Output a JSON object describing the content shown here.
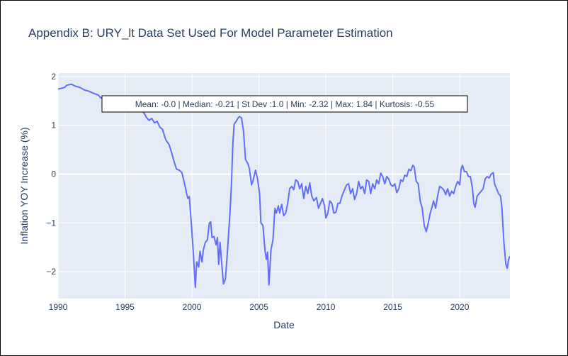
{
  "chart_data": {
    "type": "line",
    "title": "Appendix B: URY_lt Data Set Used For Model Parameter Estimation",
    "xlabel": "Date",
    "ylabel": "Inflation YOY Increase (%)",
    "xlim": [
      1990.0,
      2023.75
    ],
    "ylim": [
      -2.55,
      2.07
    ],
    "x_ticks": [
      1990,
      1995,
      2000,
      2005,
      2010,
      2015,
      2020
    ],
    "x_tick_labels": [
      "1990",
      "1995",
      "2000",
      "2005",
      "2010",
      "2015",
      "2020"
    ],
    "y_ticks": [
      2,
      1,
      0,
      -1,
      -2
    ],
    "y_tick_labels": [
      "2",
      "1",
      "0",
      "−1",
      "−2"
    ],
    "grid": true,
    "background": "#e5ecf6",
    "annotation": "Mean: -0.0 | Median: -0.21 | St Dev :1.0 | Min: -2.32 | Max: 1.84 | Kurtosis: -0.55",
    "series": [
      {
        "color": "#636efa",
        "points": [
          [
            1990.0,
            1.74
          ],
          [
            1990.3,
            1.76
          ],
          [
            1990.5,
            1.78
          ],
          [
            1990.65,
            1.82
          ],
          [
            1991.0,
            1.84
          ],
          [
            1991.3,
            1.8
          ],
          [
            1991.6,
            1.78
          ],
          [
            1992.0,
            1.72
          ],
          [
            1992.3,
            1.7
          ],
          [
            1992.6,
            1.66
          ],
          [
            1993.0,
            1.62
          ],
          [
            1993.2,
            1.56
          ],
          [
            1993.4,
            1.55
          ],
          [
            1994.0,
            1.5
          ],
          [
            1994.6,
            1.45
          ],
          [
            1995.2,
            1.4
          ],
          [
            1995.8,
            1.34
          ],
          [
            1996.2,
            1.3
          ],
          [
            1996.4,
            1.26
          ],
          [
            1996.6,
            1.16
          ],
          [
            1996.8,
            1.1
          ],
          [
            1997.0,
            1.14
          ],
          [
            1997.2,
            1.05
          ],
          [
            1997.4,
            1.08
          ],
          [
            1997.6,
            0.96
          ],
          [
            1997.8,
            0.92
          ],
          [
            1997.95,
            0.78
          ],
          [
            1998.05,
            0.7
          ],
          [
            1998.3,
            0.6
          ],
          [
            1998.5,
            0.42
          ],
          [
            1998.7,
            0.22
          ],
          [
            1998.85,
            0.1
          ],
          [
            1999.05,
            0.08
          ],
          [
            1999.25,
            0.03
          ],
          [
            1999.45,
            -0.2
          ],
          [
            1999.6,
            -0.4
          ],
          [
            1999.7,
            -0.5
          ],
          [
            1999.8,
            -0.46
          ],
          [
            1999.95,
            -1.0
          ],
          [
            2000.1,
            -1.6
          ],
          [
            2000.25,
            -2.32
          ],
          [
            2000.35,
            -1.8
          ],
          [
            2000.5,
            -1.9
          ],
          [
            2000.6,
            -1.58
          ],
          [
            2000.75,
            -1.8
          ],
          [
            2000.85,
            -1.55
          ],
          [
            2001.0,
            -1.4
          ],
          [
            2001.15,
            -1.35
          ],
          [
            2001.3,
            -1.0
          ],
          [
            2001.4,
            -0.98
          ],
          [
            2001.5,
            -1.3
          ],
          [
            2001.65,
            -1.28
          ],
          [
            2001.8,
            -1.45
          ],
          [
            2001.9,
            -1.3
          ],
          [
            2002.0,
            -1.85
          ],
          [
            2002.1,
            -1.4
          ],
          [
            2002.2,
            -1.75
          ],
          [
            2002.35,
            -2.25
          ],
          [
            2002.5,
            -2.15
          ],
          [
            2002.65,
            -1.6
          ],
          [
            2002.85,
            -0.75
          ],
          [
            2002.95,
            -0.2
          ],
          [
            2003.05,
            0.6
          ],
          [
            2003.15,
            1.02
          ],
          [
            2003.3,
            1.08
          ],
          [
            2003.45,
            1.15
          ],
          [
            2003.55,
            1.18
          ],
          [
            2003.7,
            1.15
          ],
          [
            2003.85,
            0.88
          ],
          [
            2004.0,
            0.3
          ],
          [
            2004.2,
            0.2
          ],
          [
            2004.3,
            0.1
          ],
          [
            2004.45,
            -0.22
          ],
          [
            2004.55,
            -0.15
          ],
          [
            2004.75,
            0.08
          ],
          [
            2004.9,
            -0.1
          ],
          [
            2005.05,
            -0.4
          ],
          [
            2005.15,
            -1.0
          ],
          [
            2005.3,
            -1.05
          ],
          [
            2005.45,
            -1.55
          ],
          [
            2005.55,
            -1.75
          ],
          [
            2005.65,
            -1.6
          ],
          [
            2005.75,
            -2.27
          ],
          [
            2005.9,
            -1.55
          ],
          [
            2006.05,
            -1.35
          ],
          [
            2006.2,
            -0.7
          ],
          [
            2006.3,
            -0.8
          ],
          [
            2006.45,
            -0.65
          ],
          [
            2006.55,
            -0.8
          ],
          [
            2006.7,
            -0.62
          ],
          [
            2006.85,
            -0.85
          ],
          [
            2007.0,
            -0.8
          ],
          [
            2007.15,
            -0.6
          ],
          [
            2007.3,
            -0.3
          ],
          [
            2007.45,
            -0.25
          ],
          [
            2007.6,
            -0.32
          ],
          [
            2007.75,
            -0.12
          ],
          [
            2007.9,
            -0.15
          ],
          [
            2008.05,
            -0.3
          ],
          [
            2008.2,
            -0.2
          ],
          [
            2008.35,
            -0.5
          ],
          [
            2008.5,
            -0.25
          ],
          [
            2008.65,
            -0.4
          ],
          [
            2008.8,
            -0.18
          ],
          [
            2008.95,
            -0.45
          ],
          [
            2009.1,
            -0.55
          ],
          [
            2009.3,
            -0.48
          ],
          [
            2009.45,
            -0.7
          ],
          [
            2009.6,
            -0.6
          ],
          [
            2009.75,
            -0.5
          ],
          [
            2009.9,
            -0.65
          ],
          [
            2010.0,
            -0.9
          ],
          [
            2010.15,
            -0.8
          ],
          [
            2010.3,
            -0.55
          ],
          [
            2010.45,
            -0.6
          ],
          [
            2010.6,
            -0.8
          ],
          [
            2010.75,
            -0.78
          ],
          [
            2010.9,
            -0.6
          ],
          [
            2011.05,
            -0.6
          ],
          [
            2011.2,
            -0.45
          ],
          [
            2011.35,
            -0.35
          ],
          [
            2011.55,
            -0.22
          ],
          [
            2011.7,
            -0.2
          ],
          [
            2011.85,
            -0.4
          ],
          [
            2012.0,
            -0.3
          ],
          [
            2012.15,
            -0.52
          ],
          [
            2012.3,
            -0.4
          ],
          [
            2012.45,
            -0.15
          ],
          [
            2012.6,
            -0.3
          ],
          [
            2012.75,
            -0.25
          ],
          [
            2012.9,
            -0.4
          ],
          [
            2013.05,
            -0.12
          ],
          [
            2013.2,
            -0.15
          ],
          [
            2013.35,
            -0.4
          ],
          [
            2013.5,
            -0.2
          ],
          [
            2013.65,
            -0.3
          ],
          [
            2013.8,
            -0.12
          ],
          [
            2013.95,
            -0.2
          ],
          [
            2014.1,
            0.02
          ],
          [
            2014.25,
            -0.05
          ],
          [
            2014.4,
            -0.2
          ],
          [
            2014.55,
            -0.05
          ],
          [
            2014.7,
            -0.1
          ],
          [
            2014.85,
            -0.22
          ],
          [
            2015.0,
            -0.25
          ],
          [
            2015.15,
            -0.2
          ],
          [
            2015.3,
            -0.38
          ],
          [
            2015.45,
            -0.3
          ],
          [
            2015.6,
            -0.12
          ],
          [
            2015.75,
            -0.15
          ],
          [
            2015.9,
            -0.02
          ],
          [
            2016.05,
            -0.05
          ],
          [
            2016.2,
            0.1
          ],
          [
            2016.35,
            0.07
          ],
          [
            2016.5,
            0.18
          ],
          [
            2016.6,
            0.15
          ],
          [
            2016.75,
            -0.15
          ],
          [
            2016.9,
            -0.2
          ],
          [
            2017.05,
            -0.55
          ],
          [
            2017.2,
            -0.7
          ],
          [
            2017.35,
            -1.05
          ],
          [
            2017.5,
            -1.18
          ],
          [
            2017.65,
            -1.0
          ],
          [
            2017.8,
            -0.8
          ],
          [
            2017.95,
            -0.65
          ],
          [
            2018.05,
            -0.55
          ],
          [
            2018.2,
            -0.7
          ],
          [
            2018.35,
            -0.45
          ],
          [
            2018.5,
            -0.25
          ],
          [
            2018.65,
            -0.28
          ],
          [
            2018.8,
            -0.32
          ],
          [
            2018.95,
            -0.42
          ],
          [
            2019.1,
            -0.3
          ],
          [
            2019.25,
            -0.45
          ],
          [
            2019.4,
            -0.35
          ],
          [
            2019.55,
            -0.4
          ],
          [
            2019.7,
            -0.25
          ],
          [
            2019.85,
            -0.15
          ],
          [
            2020.0,
            -0.22
          ],
          [
            2020.1,
            0.1
          ],
          [
            2020.2,
            0.18
          ],
          [
            2020.35,
            0.05
          ],
          [
            2020.5,
            0.05
          ],
          [
            2020.65,
            -0.05
          ],
          [
            2020.8,
            -0.05
          ],
          [
            2020.95,
            -0.3
          ],
          [
            2021.05,
            -0.6
          ],
          [
            2021.15,
            -0.68
          ],
          [
            2021.3,
            -0.45
          ],
          [
            2021.45,
            -0.4
          ],
          [
            2021.6,
            -0.35
          ],
          [
            2021.75,
            -0.3
          ],
          [
            2021.9,
            -0.1
          ],
          [
            2022.05,
            -0.05
          ],
          [
            2022.2,
            -0.08
          ],
          [
            2022.35,
            0.0
          ],
          [
            2022.5,
            0.03
          ],
          [
            2022.6,
            -0.2
          ],
          [
            2022.75,
            -0.3
          ],
          [
            2022.9,
            -0.4
          ],
          [
            2023.05,
            -0.45
          ],
          [
            2023.15,
            -0.7
          ],
          [
            2023.3,
            -1.4
          ],
          [
            2023.45,
            -1.85
          ],
          [
            2023.55,
            -1.93
          ],
          [
            2023.65,
            -1.75
          ],
          [
            2023.75,
            -1.68
          ]
        ]
      }
    ]
  }
}
